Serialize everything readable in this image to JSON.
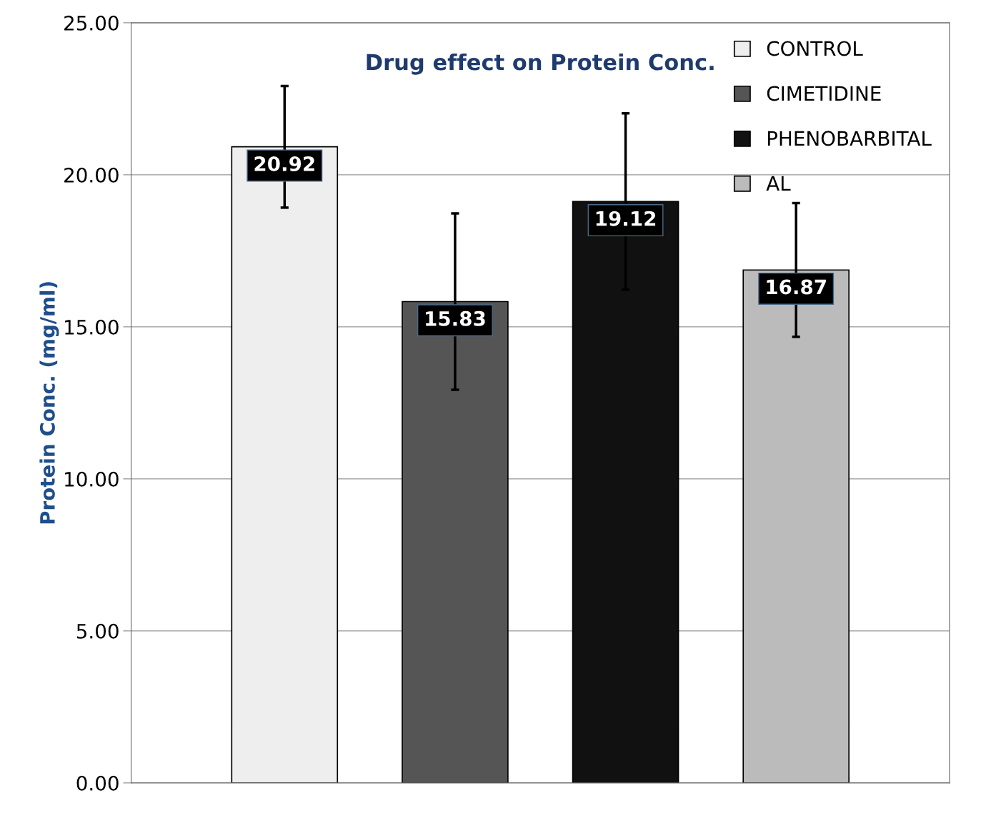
{
  "chart_data": {
    "type": "bar",
    "title": "Drug effect on Protein Conc.",
    "ylabel": "Protein Conc. (mg/ml)",
    "categories": [
      null
    ],
    "series": [
      {
        "name": "CONTROL",
        "color": "#eeeeee",
        "values": [
          20.92
        ],
        "errors": [
          2.0
        ]
      },
      {
        "name": "CIMETIDINE",
        "color": "#555555",
        "values": [
          15.83
        ],
        "errors": [
          2.9
        ]
      },
      {
        "name": "PHENOBARBITAL",
        "color": "#111111",
        "values": [
          19.12
        ],
        "errors": [
          2.9
        ]
      },
      {
        "name": "AL",
        "color": "#bbbbbb",
        "values": [
          16.87
        ],
        "errors": [
          2.2
        ]
      }
    ],
    "ylim": [
      0,
      25
    ],
    "yticks": [
      {
        "value": 0,
        "label": "0.00"
      },
      {
        "value": 5,
        "label": "5.00"
      },
      {
        "value": 10,
        "label": "10.00"
      },
      {
        "value": 15,
        "label": "15.00"
      },
      {
        "value": 20,
        "label": "20.00"
      },
      {
        "value": 25,
        "label": "25.00"
      }
    ],
    "grid": "y",
    "legend": "top right",
    "data_labels": true
  }
}
